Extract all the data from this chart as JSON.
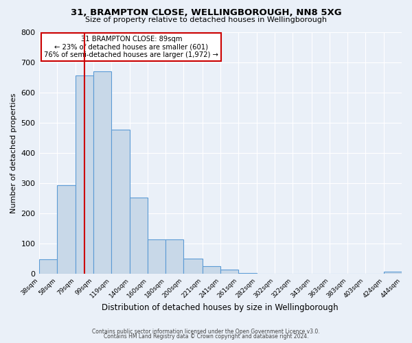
{
  "title": "31, BRAMPTON CLOSE, WELLINGBOROUGH, NN8 5XG",
  "subtitle": "Size of property relative to detached houses in Wellingborough",
  "xlabel": "Distribution of detached houses by size in Wellingborough",
  "ylabel": "Number of detached properties",
  "bin_edges": [
    38,
    58,
    79,
    99,
    119,
    140,
    160,
    180,
    200,
    221,
    241,
    261,
    282,
    302,
    322,
    343,
    363,
    383,
    403,
    424,
    444
  ],
  "bin_counts": [
    48,
    293,
    655,
    670,
    477,
    252,
    114,
    114,
    50,
    27,
    15,
    3,
    1,
    1,
    1,
    1,
    1,
    1,
    1,
    7
  ],
  "bar_color": "#c8d8e8",
  "bar_edge_color": "#5b9bd5",
  "red_line_x": 89,
  "annotation_title": "31 BRAMPTON CLOSE: 89sqm",
  "annotation_line2": "← 23% of detached houses are smaller (601)",
  "annotation_line3": "76% of semi-detached houses are larger (1,972) →",
  "annotation_box_color": "#ffffff",
  "annotation_box_edge_color": "#cc0000",
  "red_line_color": "#cc0000",
  "ylim": [
    0,
    800
  ],
  "yticks": [
    0,
    100,
    200,
    300,
    400,
    500,
    600,
    700,
    800
  ],
  "background_color": "#eaf0f8",
  "grid_color": "#ffffff",
  "footer_line1": "Contains HM Land Registry data © Crown copyright and database right 2024.",
  "footer_line2": "Contains public sector information licensed under the Open Government Licence v3.0."
}
